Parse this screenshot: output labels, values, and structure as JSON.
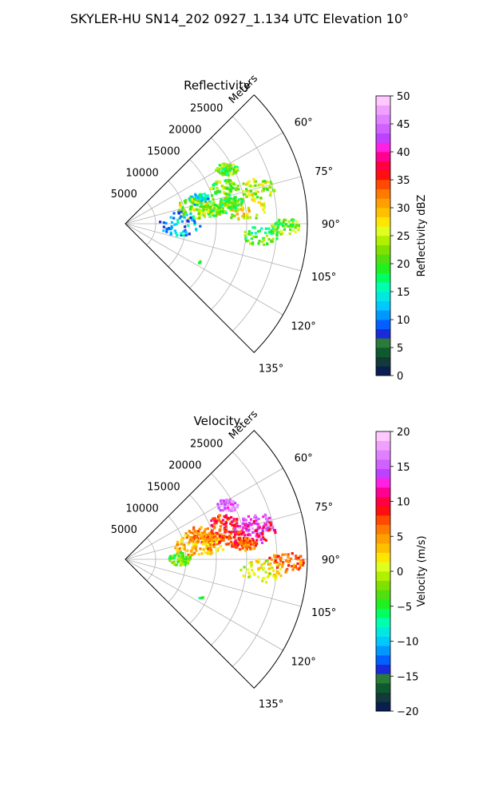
{
  "figure_title": "SKYLER-HU  SN14_202  0927_1.134 UTC Elevation 10°",
  "chart_data": [
    {
      "type": "heatmap",
      "subtype": "polar-sector (radar PPI)",
      "title": "Reflectivity",
      "radial_axis_label": "Meters",
      "radial_ticks": [
        5000,
        10000,
        15000,
        20000,
        25000
      ],
      "radial_tick_labels": [
        "5000",
        "10000",
        "15000",
        "20000",
        "25000"
      ],
      "rmax": 30000,
      "theta_range_deg": [
        45,
        135
      ],
      "theta_ticks": [
        60,
        75,
        90,
        105,
        120,
        135
      ],
      "theta_tick_labels": [
        "60°",
        "75°",
        "90°",
        "105°",
        "120°",
        "135°"
      ],
      "grid": true,
      "colorbar": {
        "label": "Reflectivity dBZ",
        "min": 0,
        "max": 50,
        "ticks": [
          0,
          5,
          10,
          15,
          20,
          25,
          30,
          35,
          40,
          45,
          50
        ],
        "tick_labels": [
          "0",
          "5",
          "10",
          "15",
          "20",
          "25",
          "30",
          "35",
          "40",
          "45",
          "50"
        ],
        "colors": [
          "#0a1e4f",
          "#123a3a",
          "#0e5a2e",
          "#2a7a3a",
          "#1a2ad8",
          "#0060ff",
          "#0098ff",
          "#00c8ff",
          "#00e8e0",
          "#00ffb0",
          "#00ff60",
          "#20f020",
          "#50e010",
          "#80e000",
          "#b0f000",
          "#e0ff20",
          "#ffe600",
          "#ffc000",
          "#ffa000",
          "#ff7a00",
          "#ff4a00",
          "#ff1010",
          "#ff0040",
          "#ff0090",
          "#ff20e0",
          "#c040ff",
          "#d060ff",
          "#e080ff",
          "#f0a0ff",
          "#ffc8ff"
        ]
      },
      "echoes": [
        {
          "r": 19000,
          "theta": 62,
          "value": 21
        },
        {
          "r": 17500,
          "theta": 70,
          "value": 22
        },
        {
          "r": 22500,
          "theta": 75,
          "value": 24
        },
        {
          "r": 15000,
          "theta": 77,
          "value": 20
        },
        {
          "r": 13000,
          "theta": 72,
          "value": 14
        },
        {
          "r": 14000,
          "theta": 80,
          "value": 22
        },
        {
          "r": 11500,
          "theta": 78,
          "value": 24
        },
        {
          "r": 20000,
          "theta": 83,
          "value": 26
        },
        {
          "r": 18000,
          "theta": 79,
          "value": 20
        },
        {
          "r": 26500,
          "theta": 91,
          "value": 22
        },
        {
          "r": 22500,
          "theta": 95,
          "value": 20
        },
        {
          "r": 9000,
          "theta": 90,
          "value": 12
        },
        {
          "r": 14000,
          "theta": 117,
          "value": 16
        }
      ]
    },
    {
      "type": "heatmap",
      "subtype": "polar-sector (radar PPI)",
      "title": "Velocity",
      "radial_axis_label": "Meters",
      "radial_ticks": [
        5000,
        10000,
        15000,
        20000,
        25000
      ],
      "radial_tick_labels": [
        "5000",
        "10000",
        "15000",
        "20000",
        "25000"
      ],
      "rmax": 30000,
      "theta_range_deg": [
        45,
        135
      ],
      "theta_ticks": [
        60,
        75,
        90,
        105,
        120,
        135
      ],
      "theta_tick_labels": [
        "60°",
        "75°",
        "90°",
        "105°",
        "120°",
        "135°"
      ],
      "grid": true,
      "colorbar": {
        "label": "Velocity (m/s)",
        "min": -20,
        "max": 20,
        "ticks": [
          -20,
          -15,
          -10,
          -5,
          0,
          5,
          10,
          15,
          20
        ],
        "tick_labels": [
          "−20",
          "−15",
          "−10",
          "−5",
          "0",
          "5",
          "10",
          "15",
          "20"
        ],
        "colors": [
          "#0a1e4f",
          "#123a3a",
          "#0e5a2e",
          "#2a7a3a",
          "#1a2ad8",
          "#0060ff",
          "#0098ff",
          "#00c8ff",
          "#00e8e0",
          "#00ffb0",
          "#00ff60",
          "#20f020",
          "#50e010",
          "#80e000",
          "#b0f000",
          "#e0ff20",
          "#ffe600",
          "#ffc000",
          "#ffa000",
          "#ff7a00",
          "#ff4a00",
          "#ff1010",
          "#ff0040",
          "#ff0090",
          "#ff20e0",
          "#c040ff",
          "#d060ff",
          "#e080ff",
          "#f0a0ff",
          "#ffc8ff"
        ]
      },
      "echoes": [
        {
          "r": 19000,
          "theta": 62,
          "value": 16
        },
        {
          "r": 17500,
          "theta": 70,
          "value": 9
        },
        {
          "r": 22500,
          "theta": 75,
          "value": 15
        },
        {
          "r": 22000,
          "theta": 78,
          "value": 11
        },
        {
          "r": 15000,
          "theta": 77,
          "value": 7
        },
        {
          "r": 13000,
          "theta": 72,
          "value": 6
        },
        {
          "r": 14000,
          "theta": 80,
          "value": 3
        },
        {
          "r": 11500,
          "theta": 78,
          "value": 4
        },
        {
          "r": 20000,
          "theta": 83,
          "value": 6
        },
        {
          "r": 18000,
          "theta": 79,
          "value": 8
        },
        {
          "r": 26500,
          "theta": 91,
          "value": 6
        },
        {
          "r": 22500,
          "theta": 95,
          "value": 1
        },
        {
          "r": 9000,
          "theta": 90,
          "value": -3
        },
        {
          "r": 14000,
          "theta": 117,
          "value": -6
        }
      ]
    }
  ]
}
